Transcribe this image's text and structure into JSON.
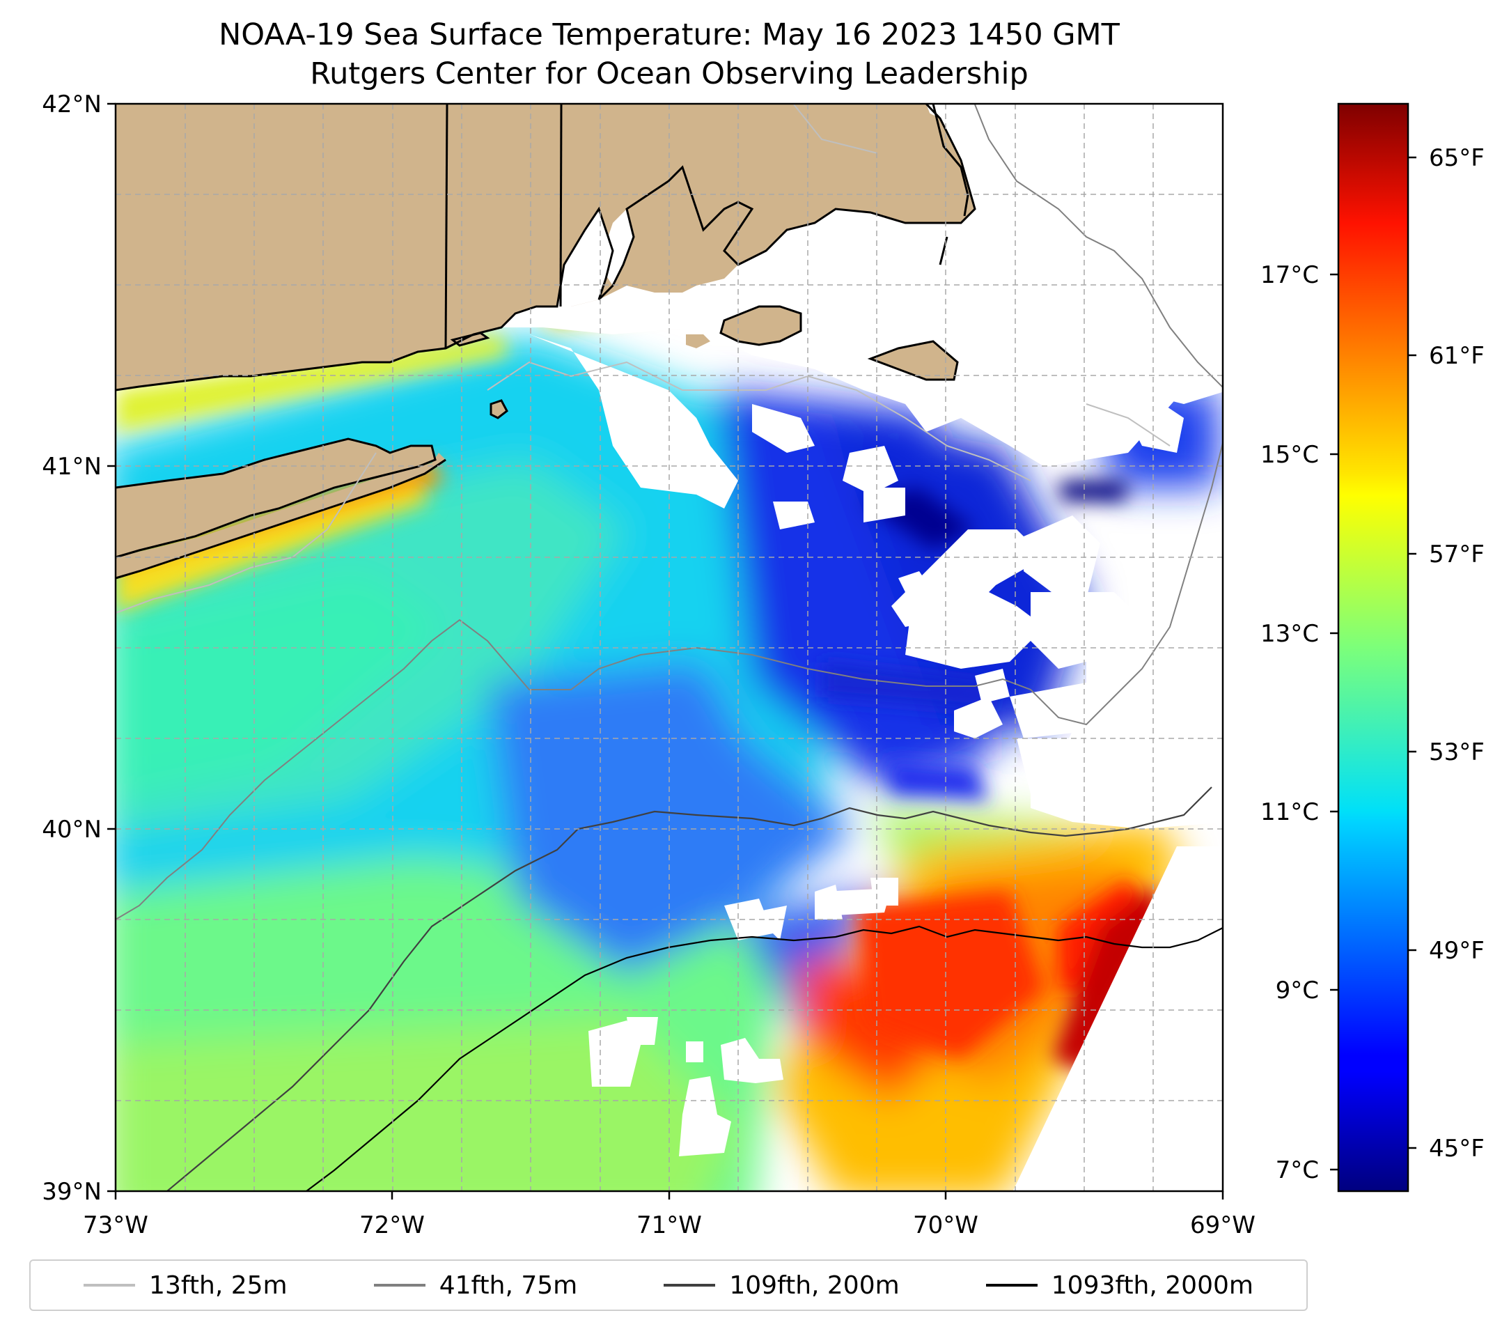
{
  "title": {
    "line1": "NOAA-19 Sea Surface Temperature: May 16 2023 1450 GMT",
    "line2": "Rutgers Center for Ocean Observing Leadership"
  },
  "map": {
    "lon_range": [
      -73,
      -69
    ],
    "lat_range": [
      39,
      42
    ],
    "x_ticks": [
      "73°W",
      "72°W",
      "71°W",
      "70°W",
      "69°W"
    ],
    "y_ticks": [
      "42°N",
      "41°N",
      "40°N",
      "39°N"
    ],
    "gridlines": true,
    "land_color": "#d0b48c"
  },
  "colorbar": {
    "colormap": "jet",
    "fahrenheit_ticks": [
      "65°F",
      "61°F",
      "57°F",
      "53°F",
      "49°F",
      "45°F"
    ],
    "celsius_ticks": [
      "17°C",
      "15°C",
      "13°C",
      "11°C",
      "9°C",
      "7°C"
    ]
  },
  "legend": {
    "items": [
      {
        "label": "13fth, 25m",
        "color": "#bfbfbf"
      },
      {
        "label": "41fth, 75m",
        "color": "#808080"
      },
      {
        "label": "109fth, 200m",
        "color": "#404040"
      },
      {
        "label": "1093fth, 2000m",
        "color": "#000000"
      }
    ]
  }
}
